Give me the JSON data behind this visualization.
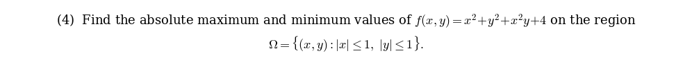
{
  "line1": "(4)  Find the absolute maximum and minimum values of $f(x, y) = x^2\\!+\\!y^2\\!+\\!x^2y\\!+\\!4$ on the region",
  "line2": "$\\Omega = \\{(x, y) : |x| \\leq 1,\\ |y| \\leq 1\\}.$",
  "background_color": "#ffffff",
  "text_color": "#000000",
  "fontsize": 13.0,
  "figwidth": 9.96,
  "figheight": 0.84,
  "dpi": 100
}
